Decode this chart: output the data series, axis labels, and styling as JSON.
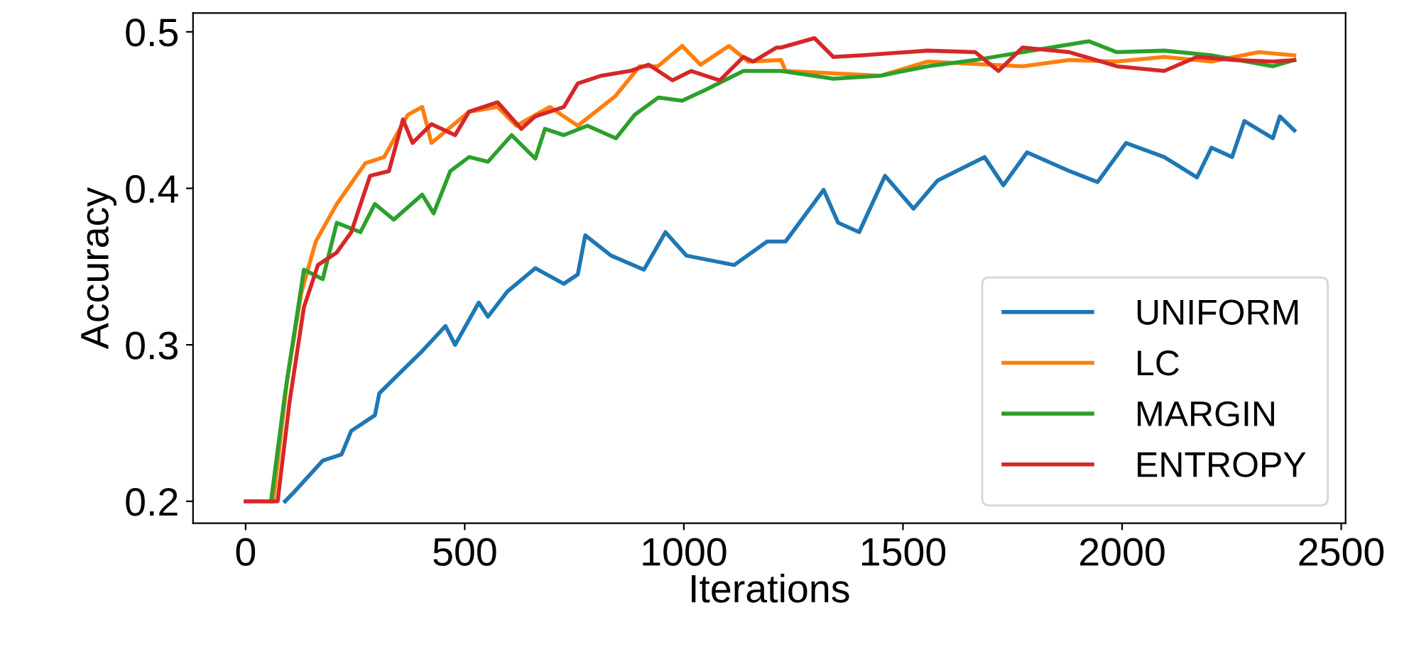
{
  "chart_data": {
    "type": "line",
    "xlabel": "Iterations",
    "ylabel": "Accuracy",
    "xlim": [
      -120,
      2510
    ],
    "ylim": [
      0.186,
      0.512
    ],
    "xticks": [
      0,
      500,
      1000,
      1500,
      2000,
      2500
    ],
    "yticks": [
      0.2,
      0.3,
      0.4,
      0.5
    ],
    "grid": false,
    "legend": "bottom right",
    "series": [
      {
        "name": "UNIFORM",
        "color": "#1f77b4",
        "x": [
          90,
          111,
          176,
          219,
          241,
          295,
          305,
          359,
          403,
          456,
          478,
          532,
          553,
          597,
          661,
          726,
          758,
          775,
          834,
          909,
          958,
          1006,
          1115,
          1190,
          1232,
          1319,
          1352,
          1400,
          1459,
          1524,
          1579,
          1686,
          1729,
          1783,
          1880,
          1944,
          2009,
          2096,
          2171,
          2204,
          2251,
          2279,
          2344,
          2360,
          2393
        ],
        "values": [
          0.2,
          0.206,
          0.226,
          0.23,
          0.245,
          0.255,
          0.269,
          0.284,
          0.296,
          0.312,
          0.3,
          0.327,
          0.318,
          0.334,
          0.349,
          0.339,
          0.345,
          0.37,
          0.357,
          0.348,
          0.372,
          0.357,
          0.351,
          0.366,
          0.366,
          0.399,
          0.378,
          0.372,
          0.408,
          0.387,
          0.405,
          0.42,
          0.402,
          0.423,
          0.411,
          0.404,
          0.429,
          0.42,
          0.407,
          0.426,
          0.42,
          0.443,
          0.432,
          0.446,
          0.437
        ]
      },
      {
        "name": "LC",
        "color": "#ff7f0e",
        "x": [
          0,
          63,
          95,
          127,
          160,
          208,
          273,
          316,
          370,
          403,
          424,
          510,
          575,
          618,
          694,
          758,
          844,
          899,
          941,
          996,
          1038,
          1103,
          1147,
          1222,
          1232,
          1449,
          1556,
          1773,
          1880,
          1988,
          2096,
          2204,
          2312,
          2393
        ],
        "values": [
          0.2,
          0.2,
          0.278,
          0.333,
          0.366,
          0.39,
          0.416,
          0.42,
          0.447,
          0.452,
          0.429,
          0.449,
          0.452,
          0.44,
          0.452,
          0.44,
          0.459,
          0.478,
          0.478,
          0.491,
          0.479,
          0.491,
          0.481,
          0.482,
          0.475,
          0.472,
          0.481,
          0.478,
          0.482,
          0.481,
          0.484,
          0.481,
          0.487,
          0.485
        ]
      },
      {
        "name": "MARGIN",
        "color": "#2ca02c",
        "x": [
          58,
          90,
          133,
          176,
          208,
          262,
          295,
          338,
          403,
          429,
          467,
          510,
          553,
          607,
          661,
          683,
          726,
          780,
          845,
          888,
          942,
          996,
          1050,
          1071,
          1136,
          1179,
          1222,
          1341,
          1449,
          1556,
          1665,
          1773,
          1924,
          1988,
          2096,
          2204,
          2344,
          2393
        ],
        "values": [
          0.2,
          0.269,
          0.348,
          0.342,
          0.378,
          0.372,
          0.39,
          0.38,
          0.396,
          0.384,
          0.411,
          0.42,
          0.417,
          0.434,
          0.419,
          0.438,
          0.434,
          0.44,
          0.432,
          0.447,
          0.458,
          0.456,
          0.463,
          0.466,
          0.475,
          0.475,
          0.475,
          0.47,
          0.472,
          0.478,
          0.482,
          0.487,
          0.494,
          0.487,
          0.488,
          0.485,
          0.478,
          0.482
        ]
      },
      {
        "name": "ENTROPY",
        "color": "#d62728",
        "x": [
          0,
          73,
          100,
          133,
          165,
          208,
          241,
          284,
          327,
          359,
          381,
          424,
          478,
          510,
          575,
          629,
          661,
          726,
          758,
          812,
          877,
          920,
          974,
          1017,
          1082,
          1136,
          1158,
          1212,
          1222,
          1298,
          1341,
          1406,
          1556,
          1665,
          1718,
          1773,
          1880,
          1988,
          2096,
          2171,
          2257,
          2344,
          2393
        ],
        "values": [
          0.2,
          0.2,
          0.263,
          0.324,
          0.351,
          0.359,
          0.372,
          0.408,
          0.411,
          0.444,
          0.429,
          0.441,
          0.434,
          0.449,
          0.455,
          0.438,
          0.446,
          0.452,
          0.467,
          0.472,
          0.475,
          0.479,
          0.469,
          0.475,
          0.469,
          0.484,
          0.481,
          0.49,
          0.49,
          0.496,
          0.484,
          0.485,
          0.488,
          0.487,
          0.475,
          0.49,
          0.487,
          0.478,
          0.475,
          0.484,
          0.482,
          0.481,
          0.482
        ]
      }
    ]
  }
}
